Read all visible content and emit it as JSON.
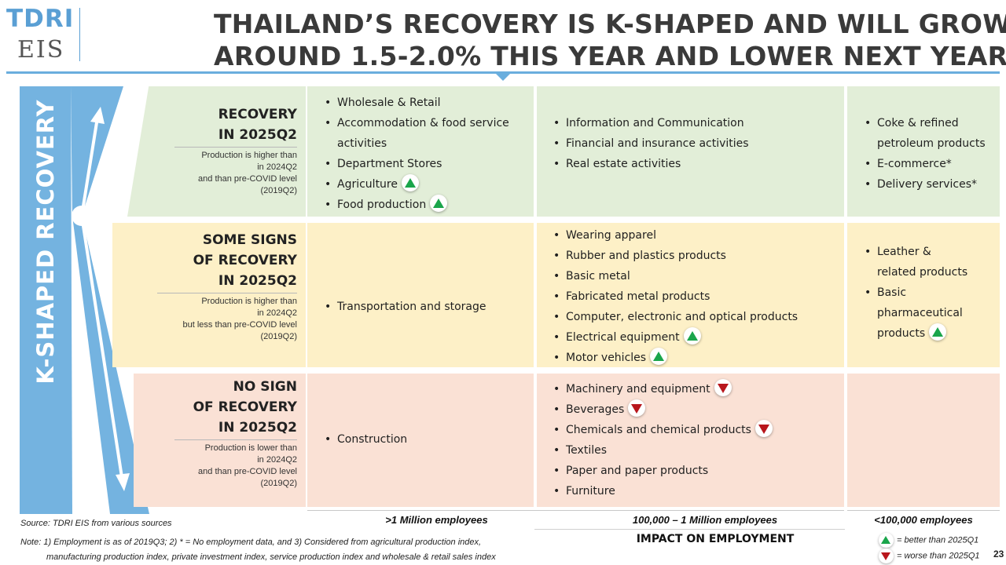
{
  "logo": {
    "line1": "TDRI",
    "line2": "EIS"
  },
  "title": {
    "line1": "THAILAND’S RECOVERY IS K-SHAPED AND WILL GROW",
    "line2": "AROUND 1.5-2.0% THIS YEAR AND LOWER NEXT YEAR"
  },
  "side_label": "K-SHAPED RECOVERY",
  "rows": [
    {
      "heading": [
        "RECOVERY",
        "IN 2025Q2"
      ],
      "desc": [
        "Production is higher than",
        "in 2024Q2",
        "and than pre-COVID level",
        "(2019Q2)"
      ],
      "col1": [
        {
          "text": "Wholesale & Retail",
          "ind": ""
        },
        {
          "text": "Accommodation & food service",
          "ind": ""
        },
        {
          "text": "activities",
          "ind": "",
          "cont": true
        },
        {
          "text": "Department Stores",
          "ind": ""
        },
        {
          "text": "Agriculture",
          "ind": "up"
        },
        {
          "text": "Food production",
          "ind": "up"
        }
      ],
      "col2": [
        {
          "text": "Information and Communication",
          "ind": ""
        },
        {
          "text": "Financial and insurance activities",
          "ind": ""
        },
        {
          "text": "Real estate activities",
          "ind": ""
        }
      ],
      "col3": [
        {
          "text": "Coke & refined",
          "ind": ""
        },
        {
          "text": "petroleum products",
          "ind": "",
          "cont": true
        },
        {
          "text": "E-commerce*",
          "ind": ""
        },
        {
          "text": "Delivery services*",
          "ind": ""
        }
      ]
    },
    {
      "heading": [
        "SOME SIGNS",
        "OF RECOVERY",
        "IN 2025Q2"
      ],
      "desc": [
        "Production is higher than",
        "in 2024Q2",
        "but less than pre-COVID level",
        "(2019Q2)"
      ],
      "col1": [
        {
          "text": "Transportation and storage",
          "ind": ""
        }
      ],
      "col2": [
        {
          "text": "Wearing apparel",
          "ind": ""
        },
        {
          "text": "Rubber and plastics products",
          "ind": ""
        },
        {
          "text": "Basic metal",
          "ind": ""
        },
        {
          "text": "Fabricated metal products",
          "ind": ""
        },
        {
          "text": "Computer, electronic and optical products",
          "ind": ""
        },
        {
          "text": "Electrical equipment",
          "ind": "up"
        },
        {
          "text": "Motor vehicles",
          "ind": "up"
        }
      ],
      "col3": [
        {
          "text": "Leather &",
          "ind": ""
        },
        {
          "text": "related products",
          "ind": "",
          "cont": true
        },
        {
          "text": "Basic",
          "ind": ""
        },
        {
          "text": "pharmaceutical",
          "ind": "",
          "cont": true
        },
        {
          "text": "products",
          "ind": "up",
          "cont": true
        }
      ]
    },
    {
      "heading": [
        "NO SIGN",
        "OF RECOVERY",
        "IN 2025Q2"
      ],
      "desc": [
        "Production is lower than",
        "in 2024Q2",
        "and than pre-COVID level",
        "(2019Q2)"
      ],
      "col1": [
        {
          "text": "Construction",
          "ind": ""
        }
      ],
      "col2": [
        {
          "text": "Machinery and equipment",
          "ind": "down"
        },
        {
          "text": "Beverages",
          "ind": "down"
        },
        {
          "text": "Chemicals and chemical products",
          "ind": "down"
        },
        {
          "text": "Textiles",
          "ind": ""
        },
        {
          "text": "Paper and paper products",
          "ind": ""
        },
        {
          "text": "Furniture",
          "ind": ""
        }
      ],
      "col3": []
    }
  ],
  "columns": [
    ">1 Million employees",
    "100,000 – 1 Million employees",
    "<100,000 employees"
  ],
  "impact_label": "IMPACT ON EMPLOYMENT",
  "source": "Source: TDRI EIS from various sources",
  "note": {
    "line1": "Note: 1) Employment is as of 2019Q3; 2) * = No employment data, and 3) Considered from agricultural production index,",
    "line2": "manufacturing production index, private investment index, service production index and wholesale & retail sales index"
  },
  "legend": {
    "better": "= better than 2025Q1",
    "worse": "= worse than 2025Q1"
  },
  "page_number": "23",
  "colors": {
    "green_row": "#e2eed8",
    "yellow_row": "#fdf0c7",
    "red_row": "#fae1d5",
    "accent_blue": "#6aaede",
    "up": "#1aa54b",
    "down": "#b8161c"
  }
}
